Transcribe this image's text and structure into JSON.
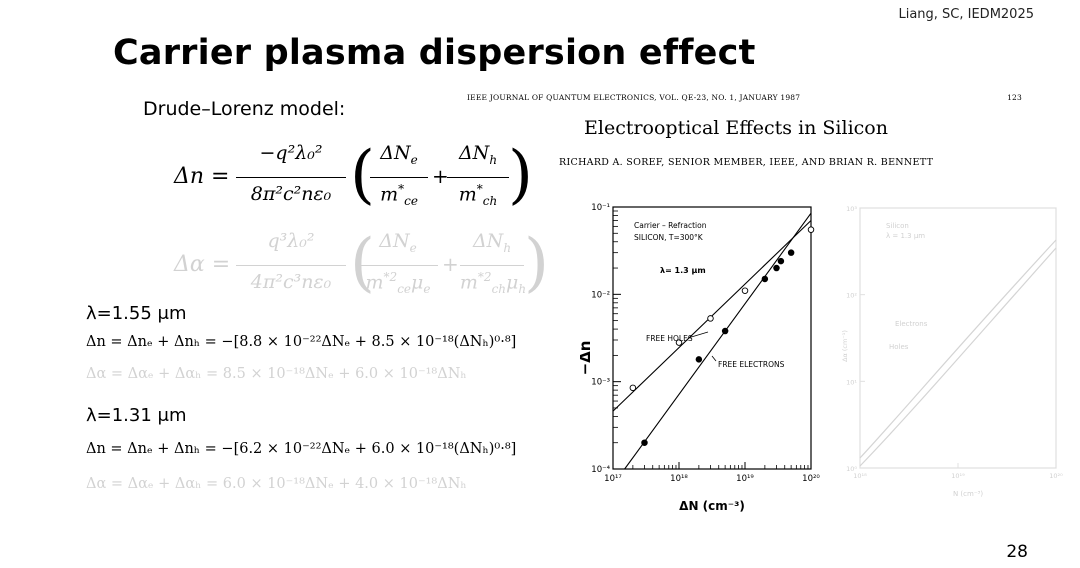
{
  "slide": {
    "citation": "Liang, SC, IEDM2025",
    "title": "Carrier plasma dispersion effect",
    "model_label": "Drude–Lorenz model:",
    "page_number": "28"
  },
  "equations": {
    "delta_n_lhs": "Δn =",
    "delta_n_num": "−q²λ₀²",
    "delta_n_den": "8π²c²nε₀",
    "delta_alpha_lhs": "Δα =",
    "delta_alpha_num": "q³λ₀²",
    "delta_alpha_den": "4π²c³nε₀"
  },
  "wavelengths": [
    {
      "label": "λ=1.55 μm",
      "dn": "Δn = Δnₑ + Δnₕ = −[8.8 × 10⁻²²ΔNₑ + 8.5 × 10⁻¹⁸(ΔNₕ)⁰·⁸]",
      "da": "Δα = Δαₑ + Δαₕ = 8.5 × 10⁻¹⁸ΔNₑ + 6.0 × 10⁻¹⁸ΔNₕ"
    },
    {
      "label": "λ=1.31 μm",
      "dn": "Δn = Δnₑ + Δnₕ = −[6.2 × 10⁻²²ΔNₑ + 6.0 × 10⁻¹⁸(ΔNₕ)⁰·⁸]",
      "da": "Δα = Δαₑ + Δαₕ = 6.0 × 10⁻¹⁸ΔNₑ + 4.0 × 10⁻¹⁸ΔNₕ"
    }
  ],
  "paper": {
    "journal_line": "IEEE JOURNAL OF QUANTUM ELECTRONICS, VOL. QE-23, NO. 1, JANUARY 1987",
    "page": "123",
    "title": "Electrooptical Effects in Silicon",
    "authors": "RICHARD A. SOREF, SENIOR MEMBER, IEEE, AND BRIAN R. BENNETT"
  },
  "chart_data": [
    {
      "type": "line",
      "xscale": "log",
      "yscale": "log",
      "xlim": [
        1e+17,
        1e+20
      ],
      "ylim": [
        0.0001,
        0.1
      ],
      "xlabel": "ΔN (cm⁻³)",
      "ylabel": "−Δn",
      "x_tick_labels": [
        "10¹⁷",
        "10¹⁸",
        "10¹⁹",
        "10²⁰"
      ],
      "y_tick_labels": [
        "10⁻⁴",
        "10⁻³",
        "10⁻²",
        "10⁻¹"
      ],
      "annotations": [
        "Carrier – Refraction",
        "SILICON, T=300°K",
        "λ= 1.3 μm"
      ],
      "series": [
        {
          "name": "FREE HOLES",
          "marker": "open-circle",
          "line": [
            [
              1e+17,
              0.00046
            ],
            [
              1e+20,
              0.07
            ]
          ],
          "points": [
            [
              2e+17,
              0.00085
            ],
            [
              1e+18,
              0.0028
            ],
            [
              3e+18,
              0.0053
            ],
            [
              1e+19,
              0.011
            ],
            [
              1e+20,
              0.055
            ]
          ]
        },
        {
          "name": "FREE ELECTRONS",
          "marker": "filled-circle",
          "line": [
            [
              1.5e+17,
              0.0001
            ],
            [
              1e+20,
              0.085
            ]
          ],
          "points": [
            [
              3e+17,
              0.0002
            ],
            [
              2e+18,
              0.0018
            ],
            [
              5e+18,
              0.0038
            ],
            [
              2e+19,
              0.015
            ],
            [
              3e+19,
              0.02
            ],
            [
              3.5e+19,
              0.024
            ],
            [
              5e+19,
              0.03
            ]
          ]
        }
      ]
    },
    {
      "type": "line",
      "xscale": "log",
      "yscale": "log",
      "faded": true,
      "xlabel": "N (cm⁻³)",
      "ylabel": "Δα (cm⁻¹)",
      "x_tick_labels": [
        "10¹⁸",
        "10¹⁹",
        "10²⁰"
      ],
      "y_tick_labels": [
        "10⁰",
        "10¹",
        "10²",
        "10³"
      ],
      "annotations": [
        "Silicon",
        "λ = 1.3 μm"
      ],
      "series": [
        {
          "name": "Electrons"
        },
        {
          "name": "Holes"
        }
      ]
    }
  ]
}
